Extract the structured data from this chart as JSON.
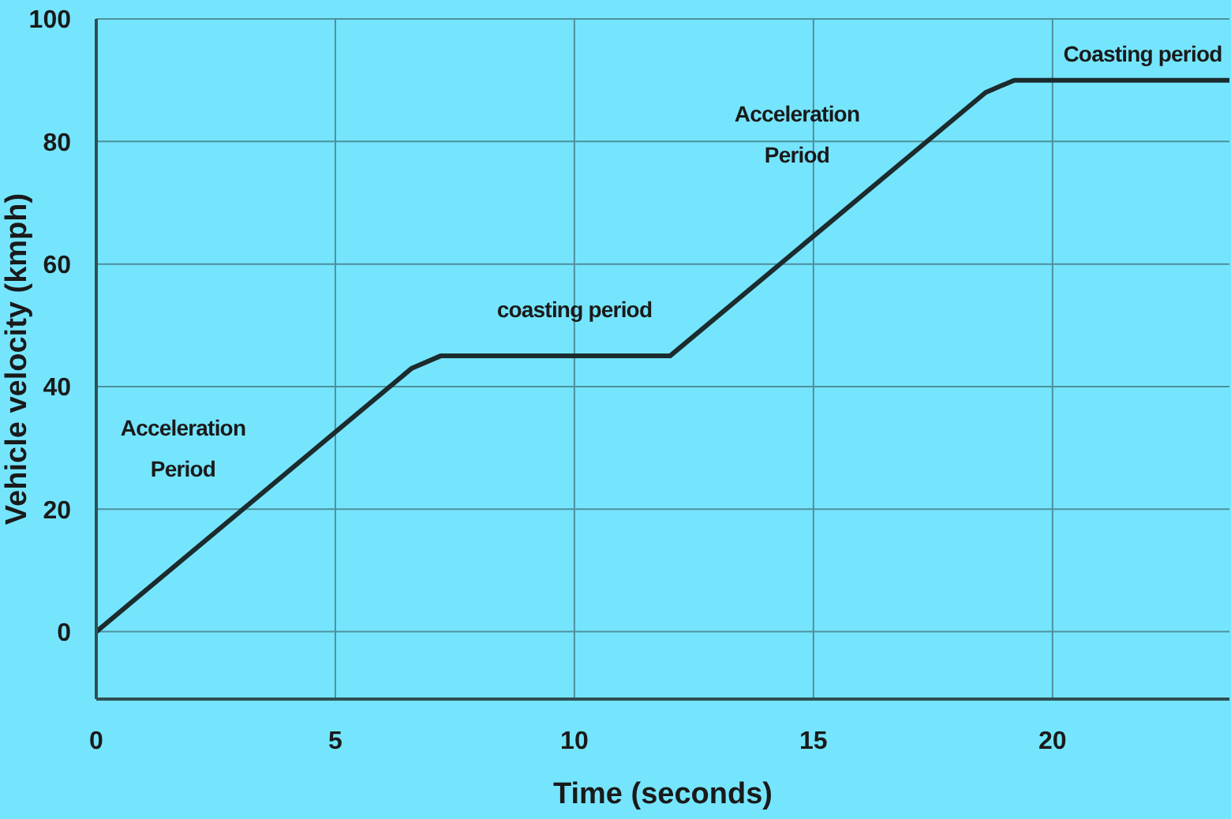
{
  "chart_data": {
    "type": "line",
    "xlabel": "Time (seconds)",
    "ylabel": "Vehicle velocity (kmph)",
    "x": [
      0,
      6.6,
      7.2,
      12,
      18.6,
      19.2,
      23.7
    ],
    "series": [
      {
        "color": "#1c2b2e",
        "values": [
          0,
          43,
          45,
          45,
          88,
          90,
          90
        ]
      }
    ],
    "xlim": [
      0,
      23.7
    ],
    "xticks": [
      0,
      5,
      10,
      15,
      20
    ],
    "ylim": [
      -11,
      100
    ],
    "yticks": [
      0,
      20,
      40,
      60,
      80,
      100
    ],
    "grid": true,
    "marker": "none",
    "line_style": "solid",
    "annotations": [
      "Acceleration Period",
      "coasting period",
      "Acceleration Period",
      "Coasting period"
    ]
  }
}
